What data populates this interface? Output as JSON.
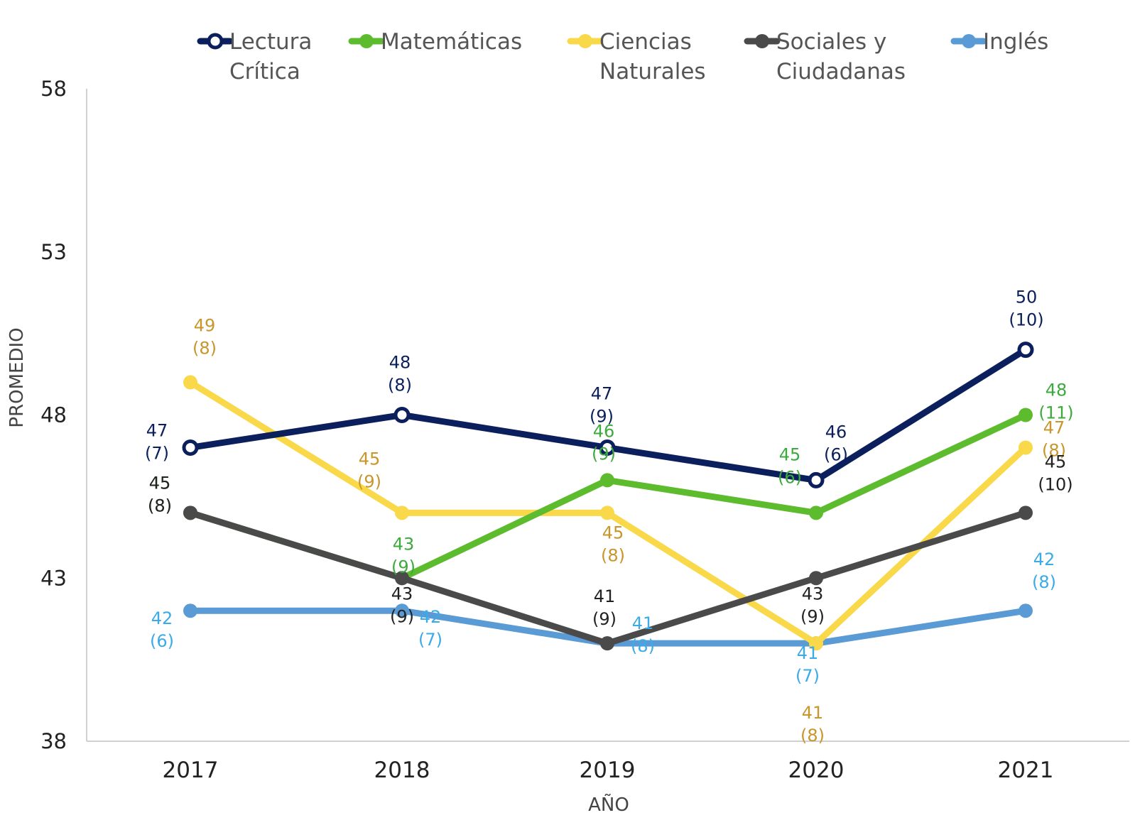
{
  "chart_data": {
    "type": "line",
    "xlabel": "AÑO",
    "ylabel": "PROMEDIO",
    "ylim": [
      38,
      58
    ],
    "yticks": [
      "58",
      "53",
      "48",
      "43",
      "38"
    ],
    "categories": [
      "2017",
      "2018",
      "2019",
      "2020",
      "2021"
    ],
    "grid": false,
    "legend_position": "top",
    "series": [
      {
        "name": "Lectura Crítica",
        "legend_lines": [
          "Lectura",
          "Crítica"
        ],
        "color": "#0B1F5C",
        "label_color": "#0B1F5C",
        "marker": "hollow",
        "values": [
          47,
          48,
          47,
          46,
          50
        ],
        "labels": [
          [
            "47",
            "(7)"
          ],
          [
            "48",
            "(8)"
          ],
          [
            "47",
            "(9)"
          ],
          [
            "46",
            "(6)"
          ],
          [
            "50",
            "(10)"
          ]
        ]
      },
      {
        "name": "Matemáticas",
        "legend_lines": [
          "Matemáticas"
        ],
        "color": "#5DBB2E",
        "label_color": "#3DAA3D",
        "marker": "solid",
        "values": [
          45,
          43,
          46,
          45,
          48
        ],
        "labels": [
          [
            "45",
            "(8)"
          ],
          [
            "43",
            "(9)"
          ],
          [
            "46",
            "(9)"
          ],
          [
            "45",
            "(6)"
          ],
          [
            "48",
            "(11)"
          ]
        ]
      },
      {
        "name": "Ciencias Naturales",
        "legend_lines": [
          "Ciencias",
          "Naturales"
        ],
        "color": "#F9D84A",
        "label_color": "#C8962A",
        "marker": "solid",
        "values": [
          49,
          45,
          45,
          41,
          47
        ],
        "labels": [
          [
            "49",
            "(8)"
          ],
          [
            "45",
            "(9)"
          ],
          [
            "45",
            "(8)"
          ],
          [
            "41",
            "(8)"
          ],
          [
            "47",
            "(8)"
          ]
        ]
      },
      {
        "name": "Sociales y Ciudadanas",
        "legend_lines": [
          "Sociales y",
          "Ciudadanas"
        ],
        "color": "#4A4A4A",
        "label_color": "#222222",
        "marker": "solid",
        "values": [
          45,
          43,
          41,
          43,
          45
        ],
        "labels": [
          [
            "45",
            "(8)"
          ],
          [
            "43",
            "(9)"
          ],
          [
            "41",
            "(9)"
          ],
          [
            "43",
            "(9)"
          ],
          [
            "45",
            "(10)"
          ]
        ]
      },
      {
        "name": "Inglés",
        "legend_lines": [
          "Inglés"
        ],
        "color": "#5B9BD5",
        "label_color": "#3AAAE8",
        "marker": "solid",
        "values": [
          42,
          42,
          41,
          41,
          42
        ],
        "labels": [
          [
            "42",
            "(6)"
          ],
          [
            "42",
            "(7)"
          ],
          [
            "41",
            "(8)"
          ],
          [
            "41",
            "(7)"
          ],
          [
            "42",
            "(8)"
          ]
        ]
      }
    ]
  }
}
